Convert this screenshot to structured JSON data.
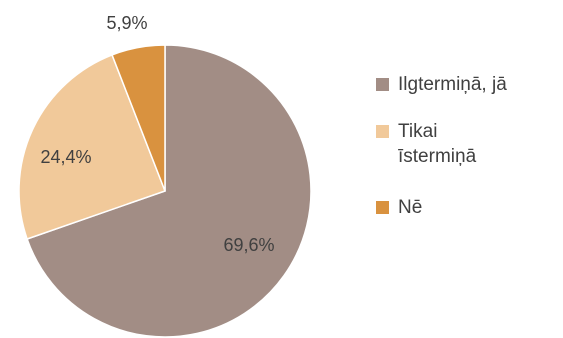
{
  "chart_data": {
    "type": "pie",
    "title": "",
    "categories": [
      "Ilgtermiņā, jā",
      "Tikai īstermiņā",
      "Nē"
    ],
    "values": [
      69.6,
      24.4,
      5.9
    ],
    "data_labels": [
      "69,6%",
      "24,4%",
      "5,9%"
    ],
    "colors": [
      "#a28d85",
      "#f1c99a",
      "#d9923f"
    ],
    "legend_position": "right"
  },
  "legend": {
    "items": [
      {
        "label": "Ilgtermiņā, jā",
        "color": "#a28d85"
      },
      {
        "label": "Tikai īstermiņā",
        "color": "#f1c99a"
      },
      {
        "label": "Nē",
        "color": "#d9923f"
      }
    ]
  }
}
